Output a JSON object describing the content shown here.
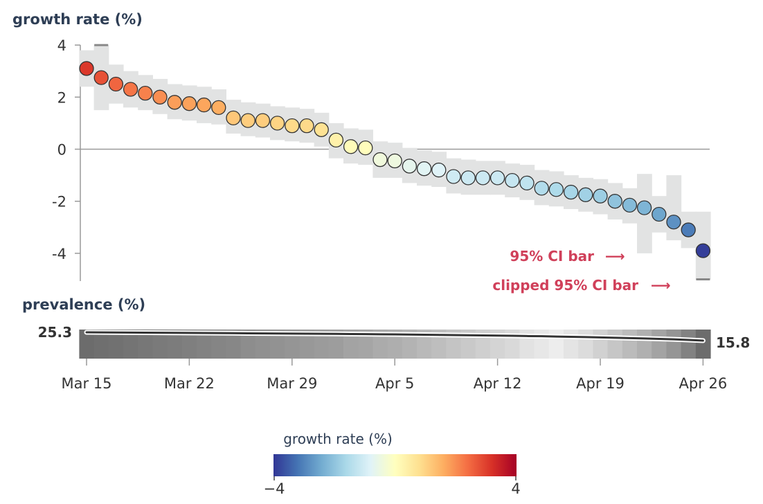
{
  "chart_data": {
    "type": "scatter",
    "y_title": "growth rate (%)",
    "y_ticks": [
      4,
      2,
      0,
      -2,
      -4
    ],
    "y_tick_labels": [
      "4",
      "2",
      "0",
      "-2",
      "-4"
    ],
    "ylim": [
      -5,
      4
    ],
    "x_tick_labels": [
      "Mar 15",
      "Mar 22",
      "Mar 29",
      "Apr 5",
      "Apr 12",
      "Apr 19",
      "Apr 26"
    ],
    "points": [
      {
        "date": "Mar 15",
        "y": 3.1,
        "lo": 2.4,
        "hi": 3.8
      },
      {
        "date": "Mar 16",
        "y": 2.75,
        "lo": 1.5,
        "hi": 4.0
      },
      {
        "date": "Mar 17",
        "y": 2.5,
        "lo": 1.75,
        "hi": 3.25
      },
      {
        "date": "Mar 18",
        "y": 2.3,
        "lo": 1.6,
        "hi": 3.0
      },
      {
        "date": "Mar 19",
        "y": 2.15,
        "lo": 1.5,
        "hi": 2.85
      },
      {
        "date": "Mar 20",
        "y": 2.0,
        "lo": 1.35,
        "hi": 2.7
      },
      {
        "date": "Mar 21",
        "y": 1.8,
        "lo": 1.15,
        "hi": 2.5
      },
      {
        "date": "Mar 22",
        "y": 1.75,
        "lo": 1.1,
        "hi": 2.45
      },
      {
        "date": "Mar 23",
        "y": 1.7,
        "lo": 1.0,
        "hi": 2.4
      },
      {
        "date": "Mar 24",
        "y": 1.6,
        "lo": 0.95,
        "hi": 2.3
      },
      {
        "date": "Mar 25",
        "y": 1.2,
        "lo": 0.6,
        "hi": 1.9
      },
      {
        "date": "Mar 26",
        "y": 1.1,
        "lo": 0.5,
        "hi": 1.8
      },
      {
        "date": "Mar 27",
        "y": 1.1,
        "lo": 0.45,
        "hi": 1.75
      },
      {
        "date": "Mar 28",
        "y": 1.0,
        "lo": 0.35,
        "hi": 1.65
      },
      {
        "date": "Mar 29",
        "y": 0.9,
        "lo": 0.3,
        "hi": 1.6
      },
      {
        "date": "Mar 30",
        "y": 0.9,
        "lo": 0.25,
        "hi": 1.55
      },
      {
        "date": "Mar 31",
        "y": 0.75,
        "lo": 0.1,
        "hi": 1.4
      },
      {
        "date": "Apr 1",
        "y": 0.35,
        "lo": -0.35,
        "hi": 1.0
      },
      {
        "date": "Apr 2",
        "y": 0.1,
        "lo": -0.55,
        "hi": 0.8
      },
      {
        "date": "Apr 3",
        "y": 0.05,
        "lo": -0.6,
        "hi": 0.75
      },
      {
        "date": "Apr 4",
        "y": -0.4,
        "lo": -1.1,
        "hi": 0.3
      },
      {
        "date": "Apr 5",
        "y": -0.45,
        "lo": -1.1,
        "hi": 0.25
      },
      {
        "date": "Apr 6",
        "y": -0.65,
        "lo": -1.3,
        "hi": 0.05
      },
      {
        "date": "Apr 7",
        "y": -0.75,
        "lo": -1.4,
        "hi": -0.05
      },
      {
        "date": "Apr 8",
        "y": -0.8,
        "lo": -1.45,
        "hi": -0.1
      },
      {
        "date": "Apr 9",
        "y": -1.05,
        "lo": -1.7,
        "hi": -0.35
      },
      {
        "date": "Apr 10",
        "y": -1.1,
        "lo": -1.75,
        "hi": -0.4
      },
      {
        "date": "Apr 11",
        "y": -1.1,
        "lo": -1.75,
        "hi": -0.45
      },
      {
        "date": "Apr 12",
        "y": -1.1,
        "lo": -1.75,
        "hi": -0.45
      },
      {
        "date": "Apr 13",
        "y": -1.2,
        "lo": -1.85,
        "hi": -0.55
      },
      {
        "date": "Apr 14",
        "y": -1.3,
        "lo": -1.95,
        "hi": -0.6
      },
      {
        "date": "Apr 15",
        "y": -1.5,
        "lo": -2.15,
        "hi": -0.8
      },
      {
        "date": "Apr 16",
        "y": -1.55,
        "lo": -2.2,
        "hi": -0.85
      },
      {
        "date": "Apr 17",
        "y": -1.65,
        "lo": -2.3,
        "hi": -1.0
      },
      {
        "date": "Apr 18",
        "y": -1.75,
        "lo": -2.4,
        "hi": -1.1
      },
      {
        "date": "Apr 19",
        "y": -1.8,
        "lo": -2.5,
        "hi": -1.15
      },
      {
        "date": "Apr 20",
        "y": -2.0,
        "lo": -2.7,
        "hi": -1.3
      },
      {
        "date": "Apr 21",
        "y": -2.15,
        "lo": -2.85,
        "hi": -1.5
      },
      {
        "date": "Apr 22",
        "y": -2.25,
        "lo": -4.0,
        "hi": -0.95
      },
      {
        "date": "Apr 23",
        "y": -2.5,
        "lo": -3.2,
        "hi": -1.8
      },
      {
        "date": "Apr 24",
        "y": -2.8,
        "lo": -3.5,
        "hi": -1.0
      },
      {
        "date": "Apr 25",
        "y": -3.1,
        "lo": -3.8,
        "hi": -2.4
      },
      {
        "date": "Apr 26",
        "y": -3.9,
        "lo": -5.0,
        "hi": -2.4
      }
    ],
    "clipped_markers": [
      {
        "date": "Mar 16",
        "y": 4.0
      },
      {
        "date": "Apr 26",
        "y": -5.0
      }
    ],
    "annotations": {
      "ci_bar": "95% CI bar",
      "clipped_ci_bar": "clipped 95% CI bar",
      "arrow": "⟶"
    },
    "prevalence": {
      "title": "prevalence (%)",
      "start_label": "25.3",
      "end_label": "15.8",
      "values": [
        25.3,
        25.2,
        25.1,
        25.0,
        24.9,
        24.8,
        24.7,
        24.6,
        24.5,
        24.4,
        24.3,
        24.1,
        24.0,
        23.9,
        23.8,
        23.7,
        23.6,
        23.5,
        23.3,
        23.2,
        23.0,
        22.9,
        22.7,
        22.5,
        22.3,
        22.1,
        21.9,
        21.7,
        21.5,
        21.3,
        21.0,
        20.8,
        20.5,
        20.2,
        19.9,
        19.5,
        19.1,
        18.7,
        18.3,
        17.8,
        17.3,
        16.6,
        15.8
      ]
    },
    "legend": {
      "title": "growth rate (%)",
      "min_label": "−4",
      "max_label": "4",
      "min": -4,
      "max": 4
    },
    "colors": {
      "ci_band": "#e2e3e3",
      "axis": "#999999",
      "zero_line": "#999999",
      "clip_marker": "#888888",
      "annotation": "#d0405a",
      "prevalence_line": "#333333",
      "scale": [
        "#313695",
        "#4575b4",
        "#74add1",
        "#abd9e9",
        "#e0f3f8",
        "#ffffbf",
        "#fee090",
        "#fdae61",
        "#f46d43",
        "#d73027",
        "#a50026"
      ]
    }
  }
}
